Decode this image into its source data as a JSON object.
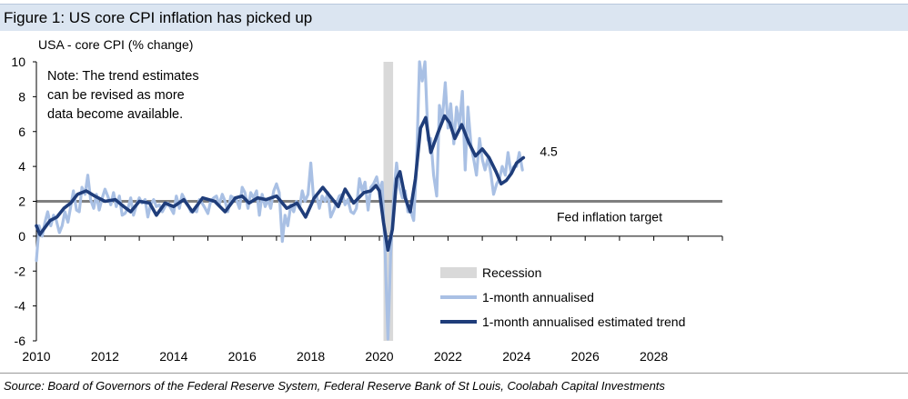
{
  "figure": {
    "title": "Figure 1: US core CPI inflation has picked up",
    "source": "Source: Board of Governors of the Federal Reserve System, Federal Reserve Bank of St Louis, Coolabah Capital Investments"
  },
  "chart_data": {
    "type": "line",
    "ylabel": "USA - core CPI (% change)",
    "xlabel": "",
    "xlim": [
      2010,
      2030
    ],
    "ylim": [
      -6,
      10
    ],
    "x_ticks": [
      "2010",
      "2012",
      "2014",
      "2016",
      "2018",
      "2020",
      "2022",
      "2024",
      "2026",
      "2028"
    ],
    "y_ticks": [
      "10",
      "8",
      "6",
      "4",
      "2",
      "0",
      "-2",
      "-4",
      "-6"
    ],
    "note": [
      "Note: The trend estimates",
      "can be revised as more",
      "data become available."
    ],
    "end_label": "4.5",
    "target": {
      "label": "Fed inflation target",
      "value": 2,
      "color": "#7f7f7f"
    },
    "recession": {
      "label": "Recession",
      "start": 2020.12,
      "end": 2020.4,
      "color": "#d9d9d9"
    },
    "colors": {
      "monthly": "#a9c0e4",
      "trend": "#1f3d7a"
    },
    "legend": [
      "Recession",
      "1-month annualised",
      "1-month annualised estimated trend"
    ],
    "series": [
      {
        "name": "1-month annualised",
        "x": [
          2010.0,
          2010.08,
          2010.17,
          2010.25,
          2010.33,
          2010.42,
          2010.5,
          2010.58,
          2010.67,
          2010.75,
          2010.83,
          2010.92,
          2011.0,
          2011.08,
          2011.17,
          2011.25,
          2011.33,
          2011.42,
          2011.5,
          2011.58,
          2011.67,
          2011.75,
          2011.83,
          2011.92,
          2012.0,
          2012.08,
          2012.17,
          2012.25,
          2012.33,
          2012.42,
          2012.5,
          2012.58,
          2012.67,
          2012.75,
          2012.83,
          2012.92,
          2013.0,
          2013.08,
          2013.17,
          2013.25,
          2013.33,
          2013.42,
          2013.5,
          2013.58,
          2013.67,
          2013.75,
          2013.83,
          2013.92,
          2014.0,
          2014.08,
          2014.17,
          2014.25,
          2014.33,
          2014.42,
          2014.5,
          2014.58,
          2014.67,
          2014.75,
          2014.83,
          2014.92,
          2015.0,
          2015.08,
          2015.17,
          2015.25,
          2015.33,
          2015.42,
          2015.5,
          2015.58,
          2015.67,
          2015.75,
          2015.83,
          2015.92,
          2016.0,
          2016.08,
          2016.17,
          2016.25,
          2016.33,
          2016.42,
          2016.5,
          2016.58,
          2016.67,
          2016.75,
          2016.83,
          2016.92,
          2017.0,
          2017.08,
          2017.17,
          2017.25,
          2017.33,
          2017.42,
          2017.5,
          2017.58,
          2017.67,
          2017.75,
          2017.83,
          2017.92,
          2018.0,
          2018.08,
          2018.17,
          2018.25,
          2018.33,
          2018.42,
          2018.5,
          2018.58,
          2018.67,
          2018.75,
          2018.83,
          2018.92,
          2019.0,
          2019.08,
          2019.17,
          2019.25,
          2019.33,
          2019.42,
          2019.5,
          2019.58,
          2019.67,
          2019.75,
          2019.83,
          2019.92,
          2020.0,
          2020.08,
          2020.17,
          2020.25,
          2020.33,
          2020.42,
          2020.5,
          2020.58,
          2020.67,
          2020.75,
          2020.83,
          2020.92,
          2021.0,
          2021.08,
          2021.17,
          2021.25,
          2021.33,
          2021.42,
          2021.5,
          2021.58,
          2021.67,
          2021.75,
          2021.83,
          2021.92,
          2022.0,
          2022.08,
          2022.17,
          2022.25,
          2022.33,
          2022.42,
          2022.5,
          2022.58,
          2022.67,
          2022.75,
          2022.83,
          2022.92,
          2023.0,
          2023.08,
          2023.17,
          2023.25,
          2023.33,
          2023.42,
          2023.5,
          2023.58,
          2023.67,
          2023.75,
          2023.83,
          2023.92,
          2024.0,
          2024.08,
          2024.17
        ],
        "y": [
          -1.4,
          0.6,
          0.0,
          0.8,
          1.4,
          0.6,
          1.2,
          0.9,
          0.2,
          0.6,
          1.4,
          0.8,
          1.7,
          2.6,
          1.5,
          1.4,
          2.8,
          2.4,
          3.5,
          2.1,
          1.6,
          2.4,
          1.5,
          2.2,
          2.7,
          2.3,
          1.8,
          2.5,
          1.7,
          2.3,
          1.2,
          1.3,
          1.6,
          2.2,
          1.2,
          1.8,
          2.2,
          1.9,
          2.1,
          1.1,
          1.8,
          2.1,
          1.7,
          1.8,
          1.4,
          1.7,
          1.9,
          1.6,
          1.3,
          2.3,
          1.6,
          2.4,
          2.1,
          1.8,
          1.4,
          1.5,
          1.4,
          2.1,
          1.9,
          1.6,
          1.3,
          2.0,
          2.2,
          2.3,
          1.8,
          2.4,
          2.0,
          1.4,
          2.3,
          2.2,
          2.1,
          1.6,
          2.8,
          2.5,
          1.6,
          2.5,
          2.2,
          2.6,
          1.2,
          2.4,
          1.7,
          2.1,
          1.6,
          2.6,
          3.0,
          2.5,
          -0.3,
          1.2,
          0.6,
          1.8,
          1.4,
          2.0,
          1.6,
          2.6,
          2.0,
          2.4,
          4.2,
          2.2,
          2.3,
          1.6,
          2.3,
          2.0,
          2.5,
          1.1,
          1.5,
          1.9,
          2.3,
          2.4,
          1.8,
          2.1,
          1.4,
          1.3,
          1.6,
          3.3,
          2.6,
          3.1,
          1.5,
          2.8,
          3.0,
          3.4,
          2.6,
          3.1,
          -1.1,
          -5.9,
          -1.0,
          2.4,
          4.2,
          2.8,
          2.2,
          2.6,
          1.4,
          1.4,
          0.9,
          3.9,
          10.0,
          8.9,
          10.0,
          5.5,
          5.6,
          3.5,
          2.3,
          7.5,
          6.6,
          8.8,
          6.2,
          7.6,
          5.3,
          7.4,
          6.3,
          8.3,
          3.8,
          7.4,
          5.2,
          4.4,
          3.5,
          5.6,
          4.4,
          3.8,
          4.5,
          3.6,
          2.4,
          3.0,
          3.3,
          4.0,
          3.5,
          4.8,
          3.7,
          4.0,
          4.0,
          4.8,
          3.8
        ]
      },
      {
        "name": "1-month annualised estimated trend",
        "x": [
          2010.0,
          2010.1,
          2010.25,
          2010.4,
          2010.6,
          2010.8,
          2011.0,
          2011.2,
          2011.45,
          2011.7,
          2012.0,
          2012.3,
          2012.55,
          2012.75,
          2013.0,
          2013.3,
          2013.5,
          2013.75,
          2014.0,
          2014.3,
          2014.55,
          2014.85,
          2015.2,
          2015.5,
          2015.8,
          2016.0,
          2016.2,
          2016.45,
          2016.7,
          2017.0,
          2017.3,
          2017.6,
          2017.85,
          2018.1,
          2018.35,
          2018.6,
          2018.8,
          2019.0,
          2019.25,
          2019.55,
          2019.75,
          2019.9,
          2020.0,
          2020.12,
          2020.25,
          2020.38,
          2020.5,
          2020.6,
          2020.75,
          2020.9,
          2021.05,
          2021.2,
          2021.35,
          2021.5,
          2021.7,
          2021.9,
          2022.05,
          2022.2,
          2022.4,
          2022.6,
          2022.8,
          2023.0,
          2023.2,
          2023.4,
          2023.55,
          2023.7,
          2023.85,
          2024.0,
          2024.2
        ],
        "y": [
          0.6,
          0.1,
          0.5,
          0.9,
          1.1,
          1.6,
          1.9,
          2.4,
          2.6,
          2.3,
          2.0,
          2.1,
          1.7,
          1.4,
          2.0,
          1.9,
          1.2,
          1.9,
          1.7,
          2.1,
          1.4,
          2.2,
          2.0,
          1.4,
          2.2,
          2.3,
          1.9,
          2.2,
          2.1,
          2.3,
          1.6,
          1.9,
          1.1,
          2.2,
          2.8,
          2.2,
          1.7,
          2.7,
          1.9,
          2.5,
          2.6,
          2.9,
          2.6,
          0.8,
          -0.8,
          0.4,
          3.3,
          3.7,
          2.2,
          1.4,
          3.3,
          6.2,
          6.8,
          4.8,
          5.9,
          6.9,
          6.5,
          5.6,
          6.4,
          5.4,
          4.6,
          5.0,
          4.5,
          3.7,
          3.0,
          3.2,
          3.6,
          4.2,
          4.5
        ]
      }
    ]
  }
}
